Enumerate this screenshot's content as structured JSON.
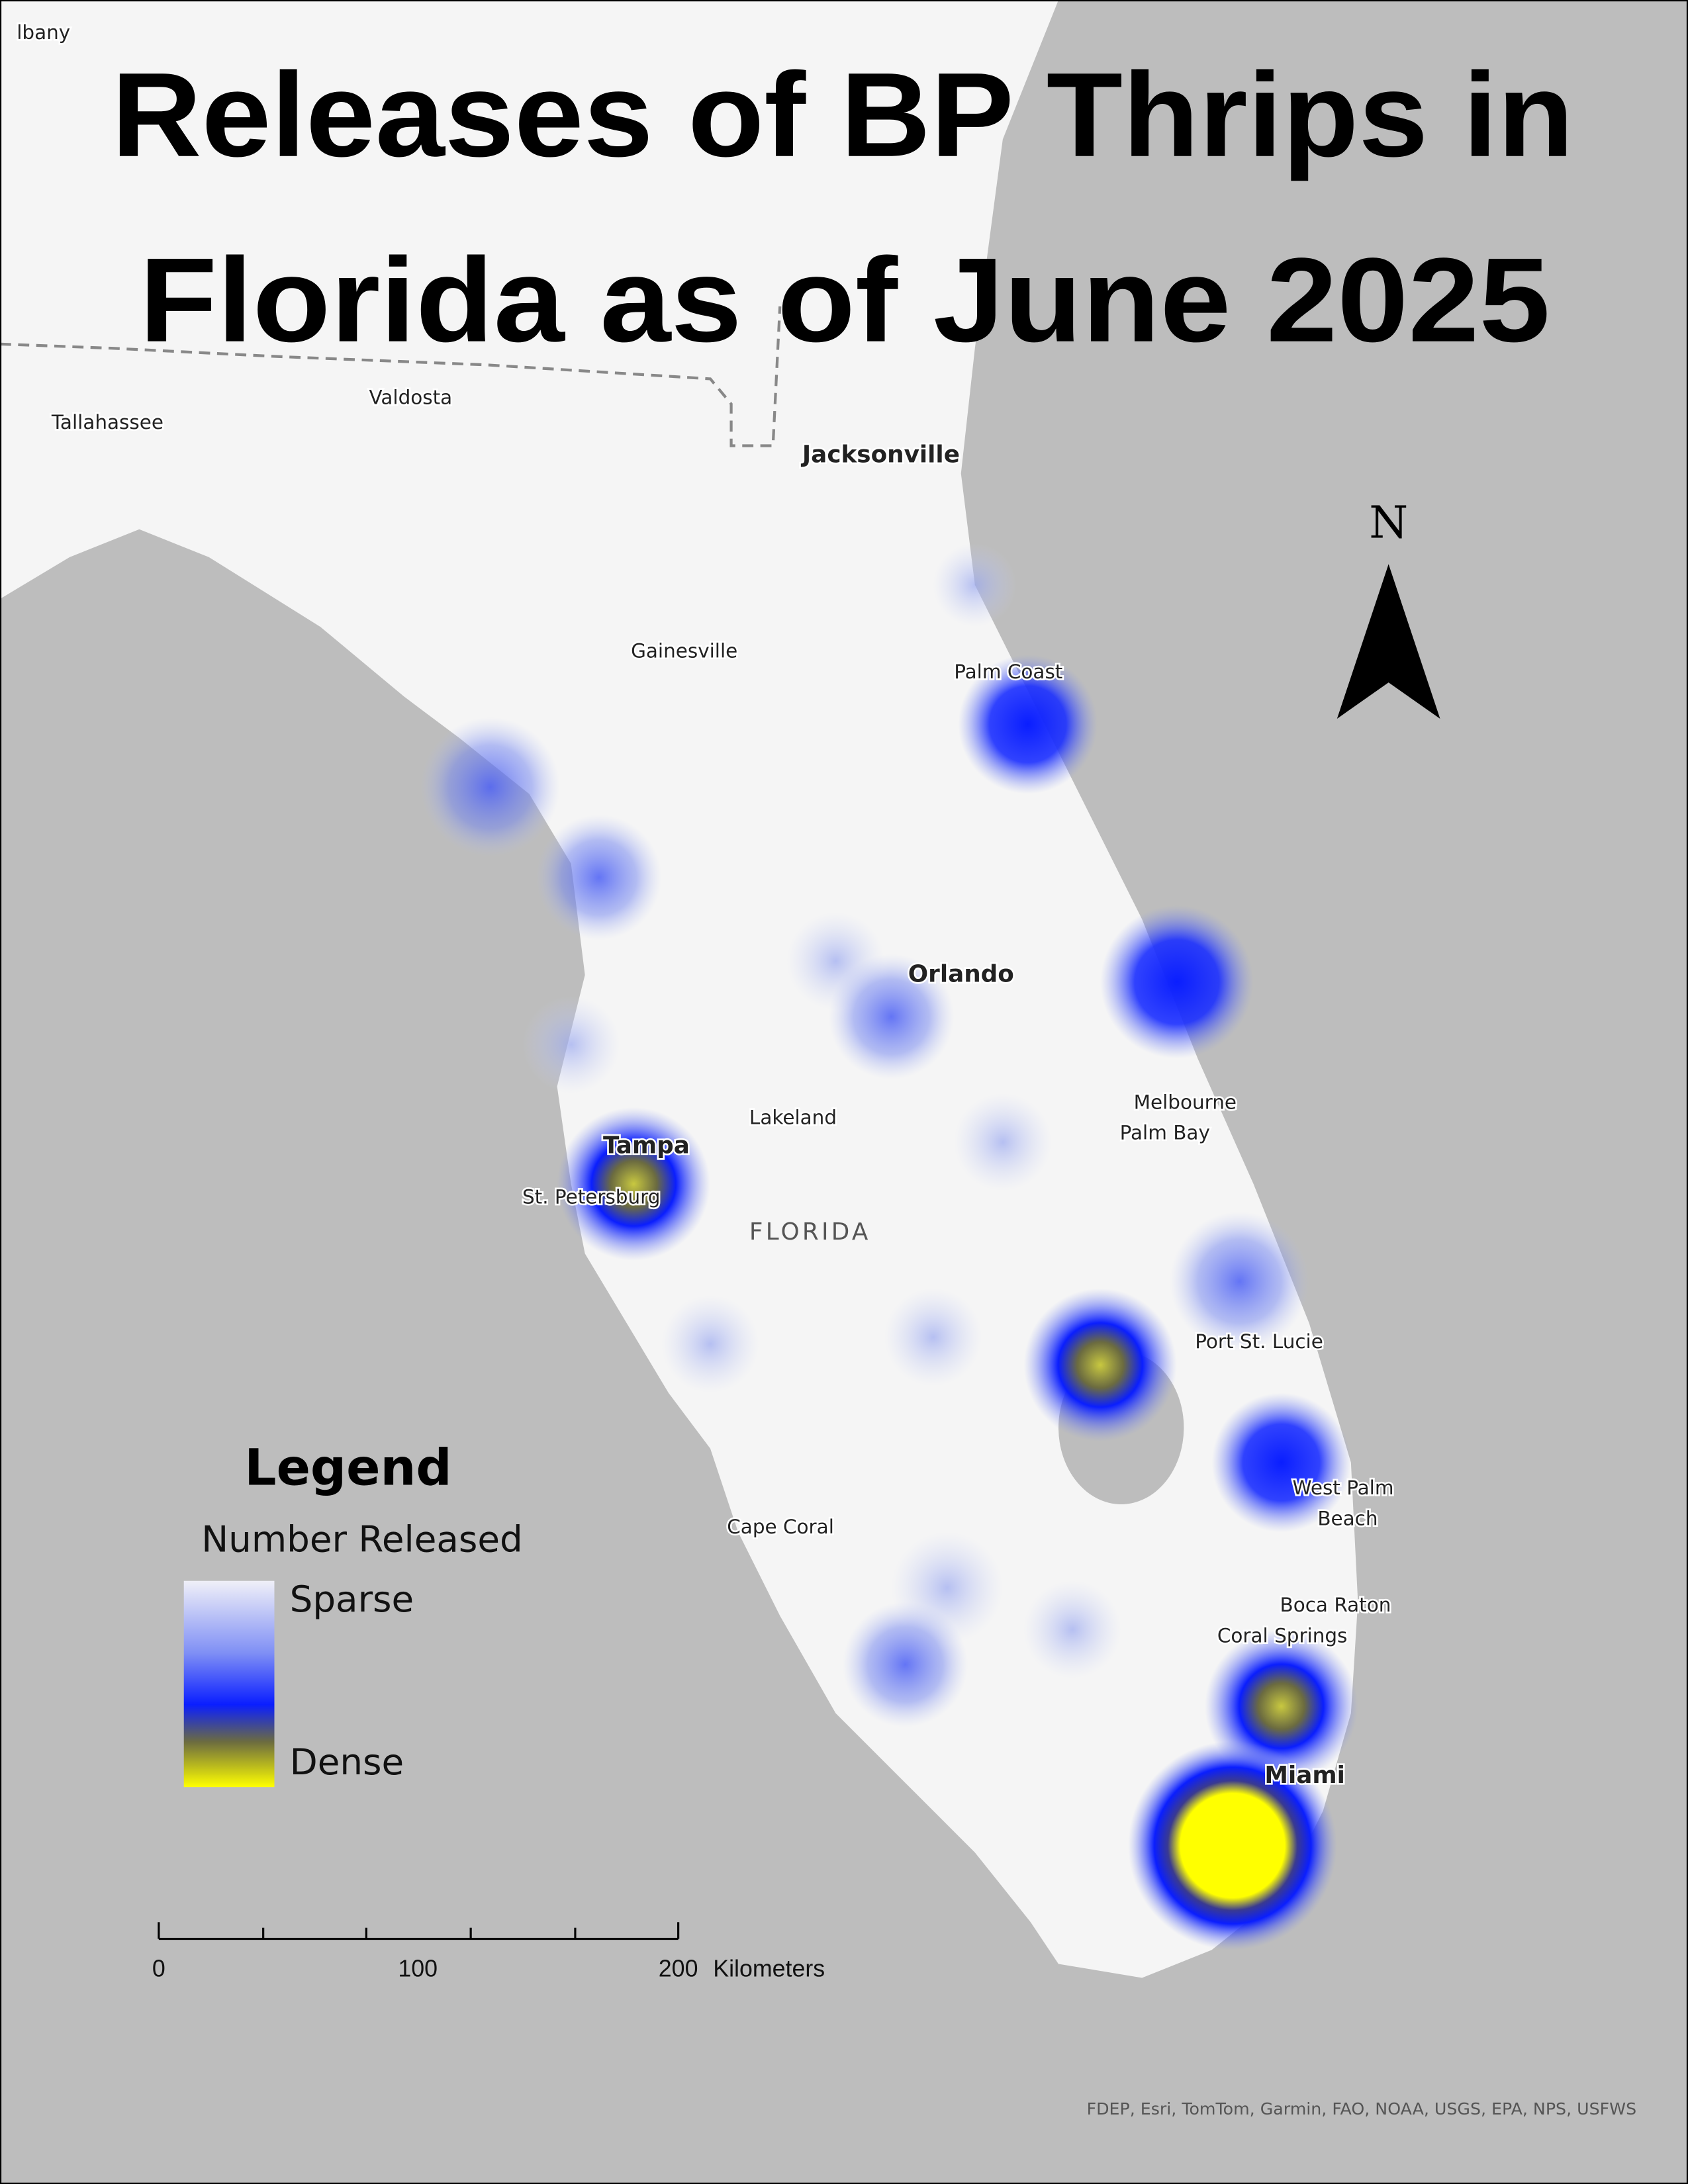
{
  "title": {
    "line1": "Releases of BP Thrips in",
    "line2": "Florida as of June 2025"
  },
  "state_label": "FLORIDA",
  "cities": {
    "albany": "lbany",
    "valdosta": "Valdosta",
    "tallahassee": "Tallahassee",
    "jacksonville": "Jacksonville",
    "gainesville": "Gainesville",
    "palm_coast": "Palm Coast",
    "orlando": "Orlando",
    "lakeland": "Lakeland",
    "melbourne": "Melbourne",
    "palm_bay": "Palm Bay",
    "tampa": "Tampa",
    "st_petersburg": "St. Petersburg",
    "port_st_lucie": "Port St. Lucie",
    "west_palm_1": "West Palm",
    "west_palm_2": "Beach",
    "cape_coral": "Cape Coral",
    "boca_raton": "Boca Raton",
    "coral_springs": "Coral Springs",
    "miami": "Miami"
  },
  "north_arrow": {
    "label": "N"
  },
  "legend": {
    "title": "Legend",
    "subtitle": "Number Released",
    "low_label": "Sparse",
    "high_label": "Dense",
    "ramp_colors": [
      "#f0f0f8",
      "#7f8ff5",
      "#0a1eff",
      "#6b6b40",
      "#ffff00"
    ]
  },
  "scale_bar": {
    "labels": [
      "0",
      "100",
      "200"
    ],
    "unit": "Kilometers"
  },
  "attribution": "FDEP, Esri, TomTom, Garmin, FAO, NOAA, USGS, EPA, NPS, USFWS",
  "colors": {
    "ocean": "#bdbdbd",
    "land": "#f5f5f5",
    "heat_low": "#7f8ff5",
    "heat_mid": "#0a1eff",
    "heat_high": "#ffff00"
  }
}
